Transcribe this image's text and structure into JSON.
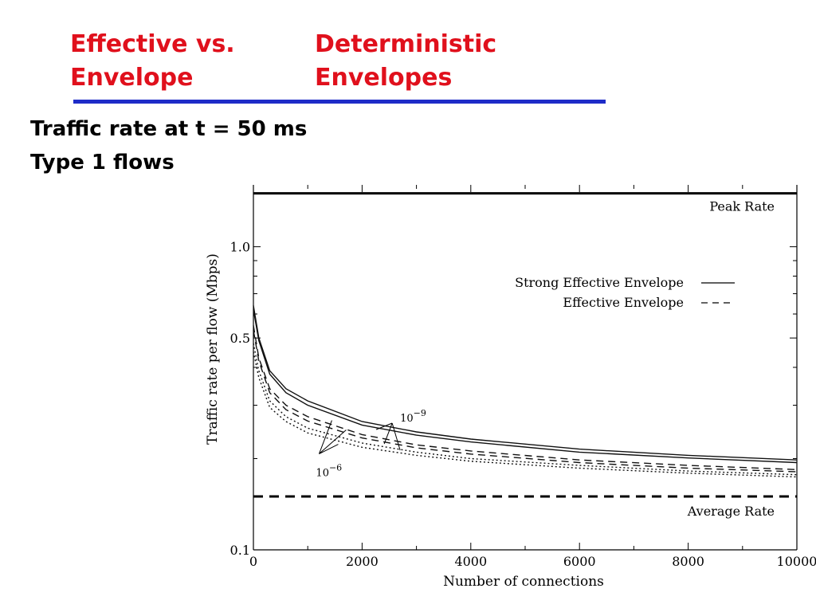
{
  "slide": {
    "title_left_line1": "Effective  vs.",
    "title_left_line2": "Envelope",
    "title_right_line1": "Deterministic",
    "title_right_line2": "Envelopes",
    "subtitle_line1": "Traffic rate at t = 50 ms",
    "subtitle_line2": "Type 1 flows",
    "title_color": "#e0101c",
    "underline_color": "#1e2cc8"
  },
  "chart_data": {
    "type": "line",
    "xlabel": "Number of connections",
    "ylabel": "Traffic rate per flow (Mbps)",
    "xlim": [
      0,
      10000
    ],
    "ylim": [
      0.1,
      1.6
    ],
    "yscale": "log",
    "x_ticks": [
      0,
      2000,
      4000,
      6000,
      8000,
      10000
    ],
    "x_tick_labels": [
      "0",
      "2000",
      "4000",
      "6000",
      "8000",
      "10000"
    ],
    "y_ticks": [
      1.0,
      0.5,
      0.1
    ],
    "y_tick_labels": [
      "1.0",
      "0.5",
      "0.1"
    ],
    "grid": false,
    "legend_position": "top-right",
    "legend": [
      {
        "label": "Strong Effective Envelope",
        "style": "solid"
      },
      {
        "label": "Effective Envelope",
        "style": "dashed"
      }
    ],
    "reference_lines": [
      {
        "label": "Peak Rate",
        "y": 1.5,
        "style": "solid"
      },
      {
        "label": "Average Rate",
        "y": 0.15,
        "style": "dashed"
      }
    ],
    "annotations": [
      {
        "text_base": "10",
        "text_exp": "−9",
        "x": 2700,
        "y": 0.265
      },
      {
        "text_base": "10",
        "text_exp": "−6",
        "x": 1150,
        "y": 0.175
      }
    ],
    "x": [
      0,
      100,
      300,
      600,
      1000,
      2000,
      3000,
      4000,
      6000,
      8000,
      10000
    ],
    "series": [
      {
        "name": "Strong Effective Envelope",
        "style": "solid",
        "values": [
          0.64,
          0.5,
          0.39,
          0.34,
          0.31,
          0.265,
          0.245,
          0.232,
          0.215,
          0.205,
          0.198
        ]
      },
      {
        "name": "Strong Effective Envelope",
        "style": "solid",
        "values": [
          0.62,
          0.49,
          0.38,
          0.33,
          0.3,
          0.258,
          0.239,
          0.227,
          0.21,
          0.201,
          0.194
        ]
      },
      {
        "name": "Effective Envelope",
        "style": "dashed",
        "values": [
          0.55,
          0.43,
          0.34,
          0.3,
          0.275,
          0.24,
          0.222,
          0.212,
          0.198,
          0.19,
          0.184
        ]
      },
      {
        "name": "Effective Envelope",
        "style": "dashed",
        "values": [
          0.53,
          0.42,
          0.33,
          0.29,
          0.266,
          0.234,
          0.217,
          0.207,
          0.194,
          0.186,
          0.181
        ]
      },
      {
        "name": "Effective Envelope",
        "style": "dotted",
        "values": [
          0.48,
          0.39,
          0.31,
          0.275,
          0.252,
          0.225,
          0.21,
          0.2,
          0.19,
          0.182,
          0.177
        ]
      },
      {
        "name": "Effective Envelope",
        "style": "dotted",
        "values": [
          0.45,
          0.37,
          0.295,
          0.265,
          0.243,
          0.218,
          0.205,
          0.196,
          0.186,
          0.179,
          0.174
        ]
      }
    ]
  }
}
